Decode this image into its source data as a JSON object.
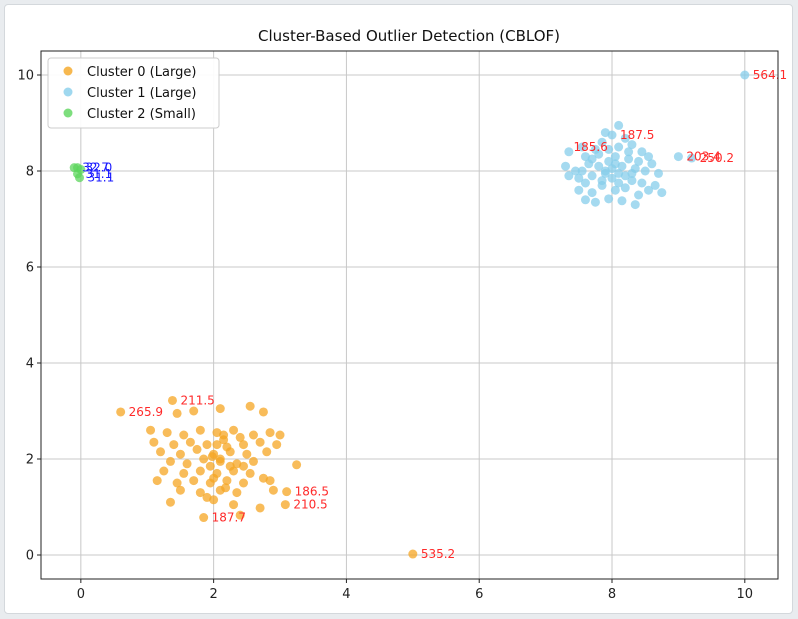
{
  "chart_data": {
    "type": "scatter",
    "title": "Cluster-Based Outlier Detection (CBLOF)",
    "xlabel": "",
    "ylabel": "",
    "xlim": [
      -0.6,
      10.5
    ],
    "ylim": [
      -0.5,
      10.5
    ],
    "xticks": [
      0,
      2,
      4,
      6,
      8,
      10
    ],
    "yticks": [
      0,
      2,
      4,
      6,
      8,
      10
    ],
    "grid": true,
    "legend_position": "top-left",
    "series": [
      {
        "name": "Cluster 0 (Large)",
        "color": "#f5a623",
        "points": [
          [
            0.6,
            2.98
          ],
          [
            1.38,
            3.22
          ],
          [
            1.7,
            3.0
          ],
          [
            2.55,
            3.1
          ],
          [
            2.1,
            3.05
          ],
          [
            1.45,
            2.95
          ],
          [
            2.75,
            2.98
          ],
          [
            1.05,
            2.6
          ],
          [
            1.3,
            2.55
          ],
          [
            1.55,
            2.5
          ],
          [
            1.8,
            2.6
          ],
          [
            2.05,
            2.55
          ],
          [
            2.3,
            2.6
          ],
          [
            2.6,
            2.5
          ],
          [
            2.85,
            2.55
          ],
          [
            3.0,
            2.5
          ],
          [
            1.1,
            2.35
          ],
          [
            1.4,
            2.3
          ],
          [
            1.65,
            2.35
          ],
          [
            1.9,
            2.3
          ],
          [
            2.15,
            2.4
          ],
          [
            2.45,
            2.3
          ],
          [
            2.7,
            2.35
          ],
          [
            2.95,
            2.3
          ],
          [
            1.2,
            2.15
          ],
          [
            1.5,
            2.1
          ],
          [
            1.75,
            2.2
          ],
          [
            2.0,
            2.1
          ],
          [
            2.25,
            2.15
          ],
          [
            2.5,
            2.1
          ],
          [
            2.8,
            2.15
          ],
          [
            1.35,
            1.95
          ],
          [
            1.6,
            1.9
          ],
          [
            1.85,
            2.0
          ],
          [
            2.1,
            1.95
          ],
          [
            2.35,
            1.9
          ],
          [
            2.6,
            1.95
          ],
          [
            1.95,
            1.85
          ],
          [
            1.25,
            1.75
          ],
          [
            1.55,
            1.7
          ],
          [
            1.8,
            1.75
          ],
          [
            2.05,
            1.7
          ],
          [
            2.3,
            1.75
          ],
          [
            2.55,
            1.7
          ],
          [
            2.75,
            1.6
          ],
          [
            1.15,
            1.55
          ],
          [
            1.45,
            1.5
          ],
          [
            1.7,
            1.55
          ],
          [
            1.95,
            1.5
          ],
          [
            2.2,
            1.55
          ],
          [
            2.45,
            1.5
          ],
          [
            2.85,
            1.55
          ],
          [
            1.5,
            1.35
          ],
          [
            1.8,
            1.3
          ],
          [
            2.1,
            1.35
          ],
          [
            2.35,
            1.3
          ],
          [
            2.9,
            1.35
          ],
          [
            1.35,
            1.1
          ],
          [
            2.0,
            1.15
          ],
          [
            2.3,
            1.05
          ],
          [
            2.7,
            0.98
          ],
          [
            2.15,
            2.5
          ],
          [
            2.2,
            2.25
          ],
          [
            2.05,
            2.3
          ],
          [
            1.98,
            2.05
          ],
          [
            2.1,
            2.0
          ],
          [
            2.25,
            1.85
          ],
          [
            2.0,
            1.6
          ],
          [
            2.18,
            1.4
          ],
          [
            1.9,
            1.2
          ],
          [
            2.4,
            2.45
          ],
          [
            2.45,
            1.85
          ],
          [
            3.25,
            1.88
          ],
          [
            3.1,
            1.32
          ],
          [
            3.08,
            1.05
          ],
          [
            1.85,
            0.78
          ],
          [
            2.4,
            0.83
          ],
          [
            5.0,
            0.02
          ]
        ]
      },
      {
        "name": "Cluster 1 (Large)",
        "color": "#87ceeb",
        "points": [
          [
            10.0,
            10.0
          ],
          [
            9.0,
            8.3
          ],
          [
            9.2,
            8.27
          ],
          [
            7.9,
            8.8
          ],
          [
            8.0,
            8.75
          ],
          [
            8.2,
            8.68
          ],
          [
            8.1,
            8.95
          ],
          [
            7.35,
            8.4
          ],
          [
            7.55,
            8.5
          ],
          [
            7.6,
            8.3
          ],
          [
            7.75,
            8.45
          ],
          [
            7.85,
            8.6
          ],
          [
            8.3,
            8.55
          ],
          [
            8.45,
            8.4
          ],
          [
            8.55,
            8.3
          ],
          [
            8.6,
            8.15
          ],
          [
            7.3,
            8.1
          ],
          [
            7.45,
            8.0
          ],
          [
            7.65,
            8.15
          ],
          [
            7.8,
            8.1
          ],
          [
            7.95,
            8.2
          ],
          [
            8.05,
            8.3
          ],
          [
            8.15,
            8.1
          ],
          [
            8.25,
            8.25
          ],
          [
            8.35,
            8.05
          ],
          [
            8.5,
            8.0
          ],
          [
            8.7,
            7.95
          ],
          [
            7.35,
            7.9
          ],
          [
            7.5,
            7.85
          ],
          [
            7.7,
            7.9
          ],
          [
            7.9,
            7.95
          ],
          [
            8.0,
            7.85
          ],
          [
            8.1,
            7.95
          ],
          [
            8.3,
            7.8
          ],
          [
            8.45,
            7.75
          ],
          [
            8.65,
            7.7
          ],
          [
            7.5,
            7.6
          ],
          [
            7.7,
            7.55
          ],
          [
            7.85,
            7.7
          ],
          [
            8.05,
            7.6
          ],
          [
            8.2,
            7.65
          ],
          [
            8.4,
            7.5
          ],
          [
            8.55,
            7.6
          ],
          [
            8.75,
            7.55
          ],
          [
            7.6,
            7.4
          ],
          [
            7.75,
            7.35
          ],
          [
            7.95,
            7.42
          ],
          [
            8.15,
            7.38
          ],
          [
            8.35,
            7.3
          ],
          [
            7.8,
            8.35
          ],
          [
            7.95,
            8.45
          ],
          [
            8.1,
            8.5
          ],
          [
            8.25,
            8.4
          ],
          [
            7.7,
            8.25
          ],
          [
            8.0,
            8.05
          ],
          [
            8.2,
            7.9
          ],
          [
            7.85,
            7.8
          ],
          [
            8.1,
            7.75
          ],
          [
            7.6,
            7.75
          ],
          [
            8.4,
            8.2
          ],
          [
            7.55,
            8.0
          ],
          [
            8.3,
            7.95
          ],
          [
            7.9,
            8.0
          ],
          [
            8.05,
            8.15
          ]
        ]
      },
      {
        "name": "Cluster 2 (Small)",
        "color": "#5cd65c",
        "points": [
          [
            -0.1,
            8.07
          ],
          [
            -0.05,
            8.07
          ],
          [
            0.0,
            8.03
          ],
          [
            -0.05,
            7.94
          ],
          [
            -0.02,
            7.86
          ]
        ]
      }
    ],
    "annotations": [
      {
        "text": "564.1",
        "x": 10.0,
        "y": 10.0,
        "color": "red"
      },
      {
        "text": "187.5",
        "x": 8.0,
        "y": 8.75,
        "color": "red"
      },
      {
        "text": "185.6",
        "x": 7.3,
        "y": 8.5,
        "color": "red"
      },
      {
        "text": "203.4",
        "x": 9.0,
        "y": 8.3,
        "color": "red"
      },
      {
        "text": "250.2",
        "x": 9.2,
        "y": 8.27,
        "color": "red"
      },
      {
        "text": "265.9",
        "x": 0.6,
        "y": 2.98,
        "color": "red"
      },
      {
        "text": "211.5",
        "x": 1.38,
        "y": 3.22,
        "color": "red"
      },
      {
        "text": "186.5",
        "x": 3.1,
        "y": 1.32,
        "color": "red"
      },
      {
        "text": "210.5",
        "x": 3.08,
        "y": 1.05,
        "color": "red"
      },
      {
        "text": "187.7",
        "x": 1.85,
        "y": 0.78,
        "color": "red"
      },
      {
        "text": "535.2",
        "x": 5.0,
        "y": 0.02,
        "color": "red"
      },
      {
        "text": "32.7",
        "x": -0.1,
        "y": 8.07,
        "color": "blue"
      },
      {
        "text": "32.0",
        "x": -0.05,
        "y": 8.07,
        "color": "blue"
      },
      {
        "text": "31.1",
        "x": -0.02,
        "y": 7.86,
        "color": "blue"
      },
      {
        "text": "31.1",
        "x": -0.05,
        "y": 7.94,
        "color": "blue"
      }
    ]
  }
}
